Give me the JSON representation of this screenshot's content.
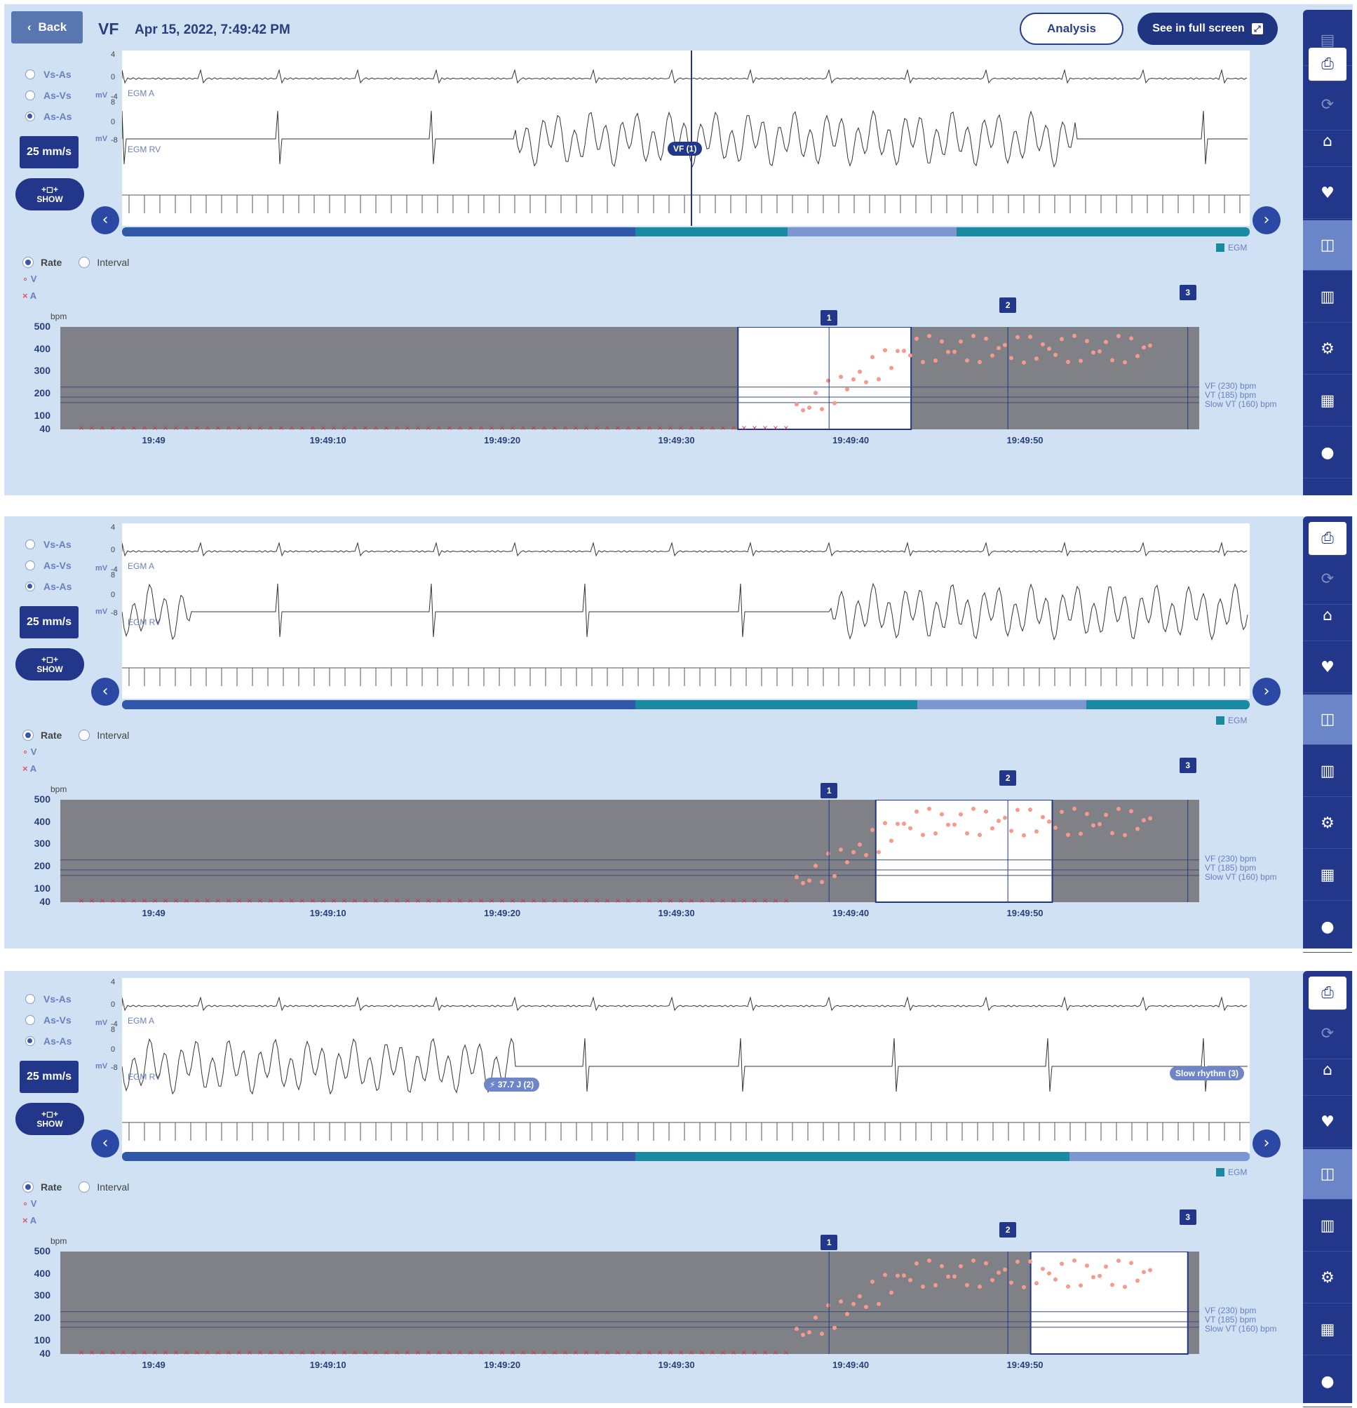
{
  "header": {
    "back_label": "Back",
    "episode_type": "VF",
    "date": "Apr 15, 2022, 7:49:42 PM",
    "analysis_label": "Analysis",
    "fullscreen_label": "See in full screen"
  },
  "controls": {
    "interval_options": [
      "Vs-As",
      "As-Vs",
      "As-As"
    ],
    "selected_interval": "As-As",
    "speed_label": "25 mm/s",
    "show_label": "SHOW",
    "show_icon_glyph": "+◻+"
  },
  "egm": {
    "channel_a": "EGM A",
    "channel_rv": "EGM RV",
    "unit": "mV",
    "scale_a": [
      "4",
      "0",
      "-4"
    ],
    "scale_rv": [
      "8",
      "0",
      "-8"
    ],
    "legend": "EGM"
  },
  "trend": {
    "modes": [
      "Rate",
      "Interval"
    ],
    "selected_mode": "Rate",
    "legend_v": "V",
    "legend_a": "A",
    "unit": "bpm",
    "y_ticks": [
      "500",
      "400",
      "300",
      "200",
      "100",
      "40"
    ],
    "x_ticks": [
      "19:49",
      "19:49:10",
      "19:49:20",
      "19:49:30",
      "19:49:40",
      "19:49:50"
    ],
    "zones": [
      "VF (230) bpm",
      "VT (185) bpm",
      "Slow VT (160) bpm"
    ],
    "segment_badges": [
      "1",
      "2",
      "3"
    ]
  },
  "panels": [
    {
      "marker_tags": [
        "VF (1)"
      ]
    },
    {
      "marker_tags": []
    },
    {
      "marker_tags": [
        "⚡ 37.7 J (2)",
        "Slow rhythm (3)"
      ]
    }
  ],
  "sidebar_icons": [
    "document-icon",
    "print-icon",
    "sync-icon",
    "home-icon",
    "hearts-icon",
    "egm-icon",
    "trend-icon",
    "settings-icon",
    "report-icon",
    "patient-icon"
  ],
  "colors": {
    "accent": "#22378a",
    "teal": "#1a8aa0",
    "v_marker": "#f59a8d",
    "a_marker": "#d8304a",
    "plot_bg": "#7f8186"
  }
}
